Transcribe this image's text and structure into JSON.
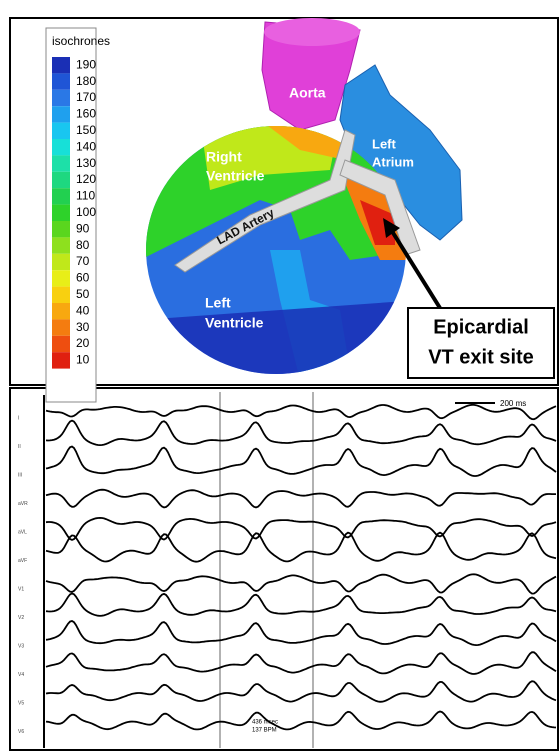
{
  "colorbar": {
    "title": "isochrones",
    "ticks": [
      190,
      180,
      170,
      160,
      150,
      140,
      130,
      120,
      110,
      100,
      90,
      80,
      70,
      60,
      50,
      40,
      30,
      20,
      10
    ],
    "colors": [
      "#1a2fb5",
      "#1f55d6",
      "#2a78e6",
      "#1fa0ee",
      "#19c6f0",
      "#17e0d8",
      "#1de0a8",
      "#1ed880",
      "#22d050",
      "#2ed22a",
      "#5ad61e",
      "#8ee01e",
      "#c0e81a",
      "#e8ee18",
      "#f8d010",
      "#f8a810",
      "#f47c10",
      "#ee4e10",
      "#e02010"
    ]
  },
  "heart_labels": {
    "aorta": "Aorta",
    "left_atrium": [
      "Left",
      "Atrium"
    ],
    "right_ventricle": [
      "Right",
      "Ventricle"
    ],
    "lad_artery": "LAD Artery",
    "left_ventricle": [
      "Left",
      "Ventricle"
    ]
  },
  "callout": [
    "Epicardial",
    "VT exit site"
  ],
  "ecg": {
    "scale_bar": "200 ms",
    "leads": [
      "I",
      "II",
      "III",
      "aVR",
      "aVL",
      "aVF",
      "V1",
      "V2",
      "V3",
      "V4",
      "V5",
      "V6"
    ],
    "interval": [
      "436 msec",
      "137 BPM"
    ]
  }
}
